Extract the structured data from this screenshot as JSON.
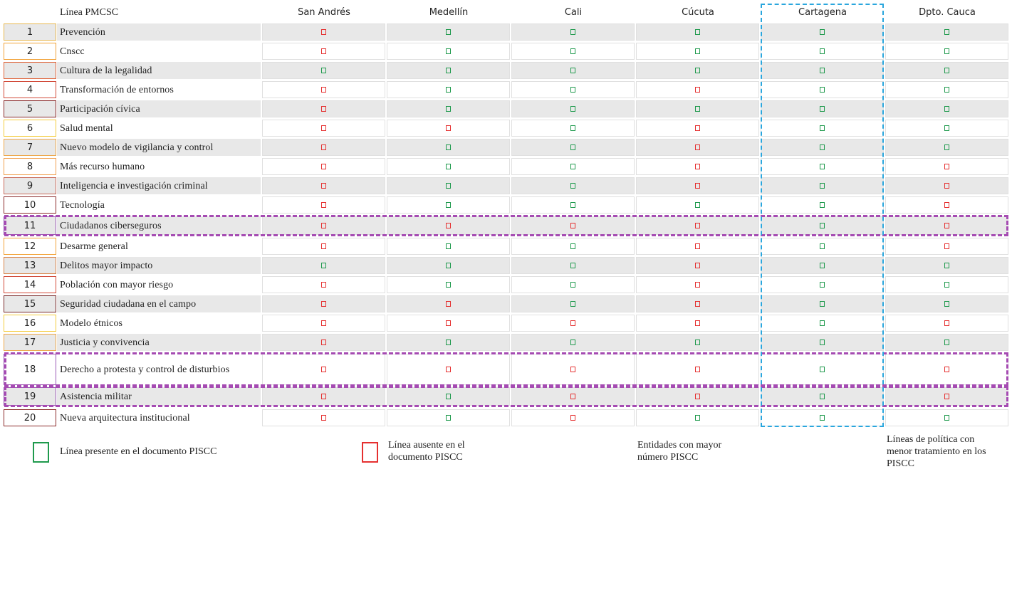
{
  "header": {
    "line_label": "Línea PMCSC",
    "cities": [
      "San Andrés",
      "Medellín",
      "Cali",
      "Cúcuta",
      "Cartagena",
      "Dpto. Cauca"
    ]
  },
  "rows": [
    {
      "num": "1",
      "label": "Prevención",
      "values": [
        "absent",
        "present",
        "present",
        "present",
        "present",
        "present"
      ]
    },
    {
      "num": "2",
      "label": "Cnscc",
      "values": [
        "absent",
        "present",
        "present",
        "present",
        "present",
        "present"
      ]
    },
    {
      "num": "3",
      "label": "Cultura de la legalidad",
      "values": [
        "present",
        "present",
        "present",
        "present",
        "present",
        "present"
      ]
    },
    {
      "num": "4",
      "label": "Transformación de entornos",
      "values": [
        "absent",
        "present",
        "present",
        "absent",
        "present",
        "present"
      ]
    },
    {
      "num": "5",
      "label": "Participación cívica",
      "values": [
        "absent",
        "present",
        "present",
        "present",
        "present",
        "present"
      ]
    },
    {
      "num": "6",
      "label": "Salud mental",
      "values": [
        "absent",
        "absent",
        "present",
        "absent",
        "present",
        "present"
      ]
    },
    {
      "num": "7",
      "label": "Nuevo modelo de vigilancia y control",
      "values": [
        "absent",
        "present",
        "present",
        "absent",
        "present",
        "present"
      ]
    },
    {
      "num": "8",
      "label": "Más recurso humano",
      "values": [
        "absent",
        "present",
        "present",
        "absent",
        "present",
        "absent"
      ]
    },
    {
      "num": "9",
      "label": "Inteligencia e investigación criminal",
      "values": [
        "absent",
        "present",
        "present",
        "absent",
        "present",
        "absent"
      ]
    },
    {
      "num": "10",
      "label": "Tecnología",
      "values": [
        "absent",
        "present",
        "present",
        "present",
        "present",
        "absent"
      ]
    },
    {
      "num": "11",
      "label": "Ciudadanos ciberseguros",
      "values": [
        "absent",
        "absent",
        "absent",
        "absent",
        "present",
        "absent"
      ]
    },
    {
      "num": "12",
      "label": "Desarme general",
      "values": [
        "absent",
        "present",
        "present",
        "absent",
        "present",
        "absent"
      ]
    },
    {
      "num": "13",
      "label": "Delitos mayor impacto",
      "values": [
        "present",
        "present",
        "present",
        "absent",
        "present",
        "present"
      ]
    },
    {
      "num": "14",
      "label": "Población con mayor riesgo",
      "values": [
        "absent",
        "present",
        "present",
        "absent",
        "present",
        "present"
      ]
    },
    {
      "num": "15",
      "label": "Seguridad ciudadana en el campo",
      "values": [
        "absent",
        "absent",
        "present",
        "absent",
        "present",
        "present"
      ]
    },
    {
      "num": "16",
      "label": "Modelo étnicos",
      "values": [
        "absent",
        "absent",
        "absent",
        "absent",
        "present",
        "absent"
      ]
    },
    {
      "num": "17",
      "label": "Justicia y convivencia",
      "values": [
        "absent",
        "present",
        "present",
        "present",
        "present",
        "present"
      ]
    },
    {
      "num": "18",
      "label": "Derecho a protesta y control de disturbios",
      "values": [
        "absent",
        "absent",
        "absent",
        "absent",
        "present",
        "absent"
      ]
    },
    {
      "num": "19",
      "label": "Asistencia militar",
      "values": [
        "absent",
        "present",
        "absent",
        "absent",
        "present",
        "absent"
      ]
    },
    {
      "num": "20",
      "label": "Nueva arquitectura institucional",
      "values": [
        "absent",
        "present",
        "absent",
        "present",
        "present",
        "present"
      ]
    }
  ],
  "num_border_colors": [
    "#e8b84f",
    "#f2a33a",
    "#e0643a",
    "#d24b3a",
    "#8a2a2a",
    "#f4cc3c",
    "#eda84a",
    "#f0a050",
    "#c96a5a",
    "#8a2a2a",
    "#9b59b6",
    "#f2a33a",
    "#d9854a",
    "#d24b3a",
    "#7a2a2a",
    "#f4cc3c",
    "#eda84a",
    "#9b59b6",
    "#9b59b6",
    "#8a2a2a"
  ],
  "colors": {
    "present": "#1f9a4d",
    "absent": "#e53030",
    "highlight_row": "#a54bb2",
    "highlight_col": "#2aa6dd"
  },
  "legend": {
    "present_label": "Línea presente en el documento PISCC",
    "absent_label": "Línea ausente en el documento PISCC",
    "entities_label": "Entidades con mayor número PISCC",
    "less_treatment_label": "Líneas de política con menor tratamiento en los PISCC"
  }
}
